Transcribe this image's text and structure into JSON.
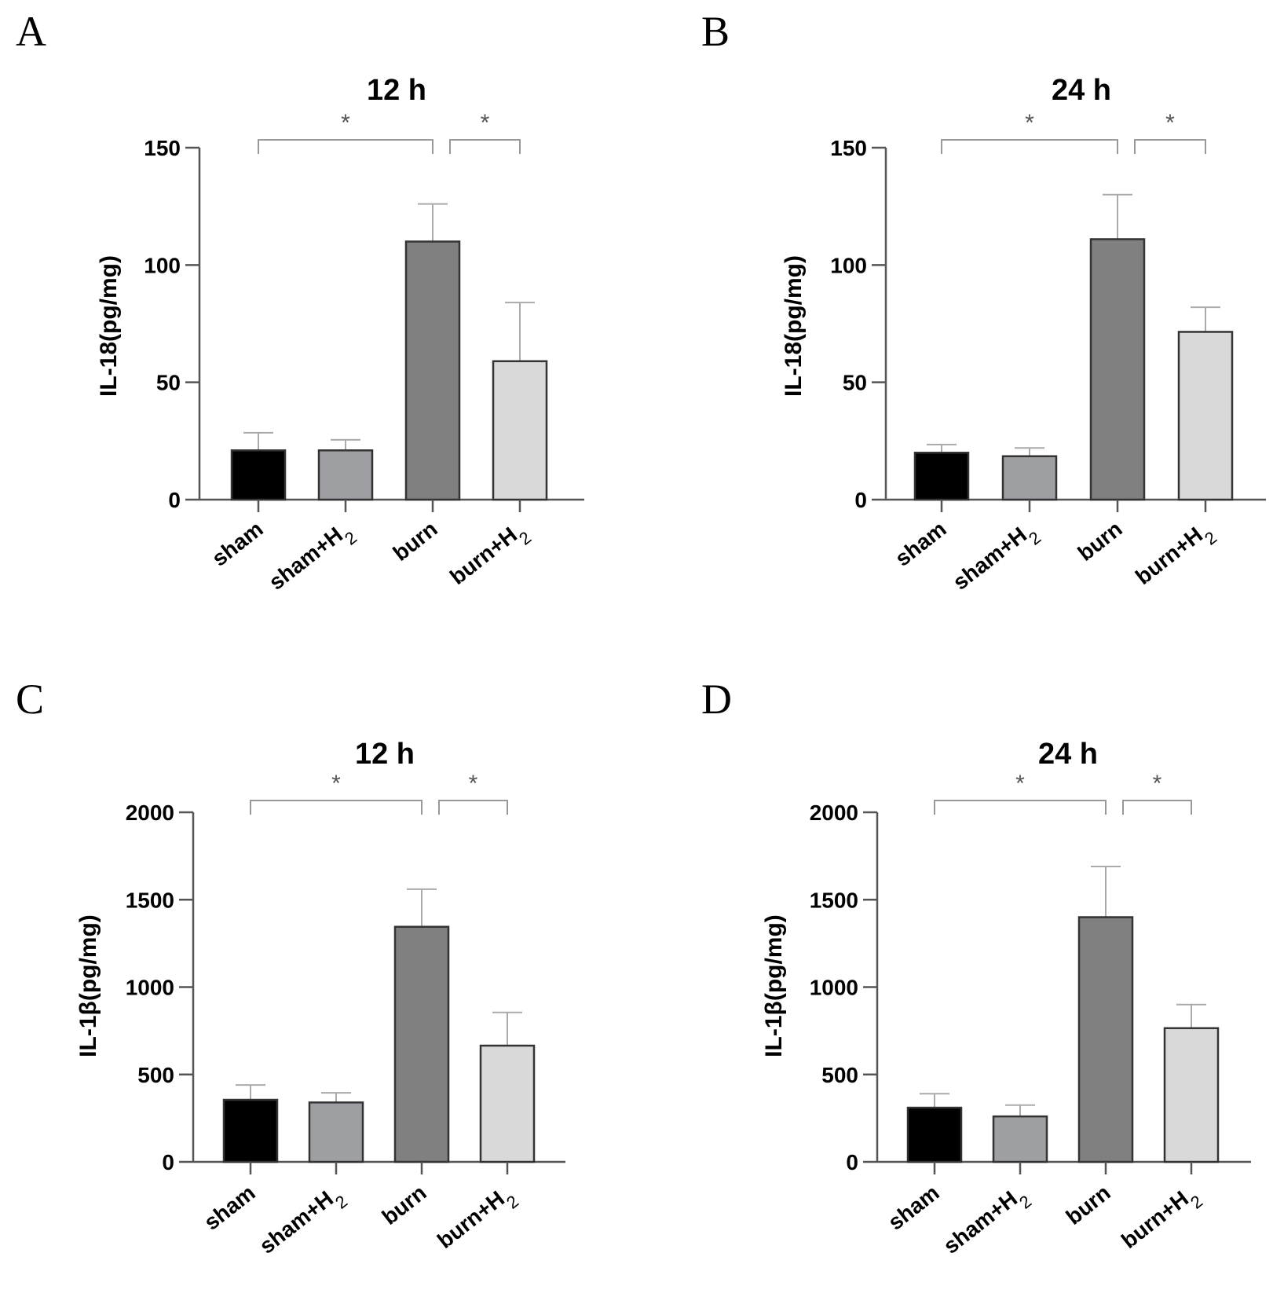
{
  "chart_data": [
    {
      "panel": "A",
      "type": "bar",
      "title": "12 h",
      "ylabel": "IL-18(pg/mg)",
      "ylim": [
        0,
        150
      ],
      "yticks": [
        "0",
        "50",
        "100",
        "150"
      ],
      "categories": [
        "sham",
        "sham+H",
        "burn",
        "burn+H"
      ],
      "category_subscripts": [
        "",
        "2",
        "",
        "2"
      ],
      "values": [
        21,
        21,
        110,
        59
      ],
      "errors": [
        7.5,
        4.5,
        16,
        25
      ],
      "bar_colors": [
        "#000000",
        "#9e9fa3",
        "#808080",
        "#d9d9d9"
      ],
      "significance": [
        {
          "from": 0,
          "to": 2,
          "label": "*"
        },
        {
          "from": 2,
          "to": 3,
          "label": "*"
        }
      ]
    },
    {
      "panel": "B",
      "type": "bar",
      "title": "24 h",
      "ylabel": "IL-18(pg/mg)",
      "ylim": [
        0,
        150
      ],
      "yticks": [
        "0",
        "50",
        "100",
        "150"
      ],
      "categories": [
        "sham",
        "sham+H",
        "burn",
        "burn+H"
      ],
      "category_subscripts": [
        "",
        "2",
        "",
        "2"
      ],
      "values": [
        20,
        18.5,
        111,
        71.5
      ],
      "errors": [
        3.5,
        3.5,
        19,
        10.5
      ],
      "bar_colors": [
        "#000000",
        "#9e9fa3",
        "#808080",
        "#d9d9d9"
      ],
      "significance": [
        {
          "from": 0,
          "to": 2,
          "label": "*"
        },
        {
          "from": 2,
          "to": 3,
          "label": "*"
        }
      ]
    },
    {
      "panel": "C",
      "type": "bar",
      "title": "12 h",
      "ylabel": "IL-1β(pg/mg)",
      "ylim": [
        0,
        2000
      ],
      "yticks": [
        "0",
        "500",
        "1000",
        "1500",
        "2000"
      ],
      "categories": [
        "sham",
        "sham+H",
        "burn",
        "burn+H"
      ],
      "category_subscripts": [
        "",
        "2",
        "",
        "2"
      ],
      "values": [
        355,
        340,
        1345,
        665
      ],
      "errors": [
        85,
        55,
        215,
        190
      ],
      "bar_colors": [
        "#000000",
        "#9e9fa3",
        "#808080",
        "#d9d9d9"
      ],
      "significance": [
        {
          "from": 0,
          "to": 2,
          "label": "*"
        },
        {
          "from": 2,
          "to": 3,
          "label": "*"
        }
      ]
    },
    {
      "panel": "D",
      "type": "bar",
      "title": "24 h",
      "ylabel": "IL-1β(pg/mg)",
      "ylim": [
        0,
        2000
      ],
      "yticks": [
        "0",
        "500",
        "1000",
        "1500",
        "2000"
      ],
      "categories": [
        "sham",
        "sham+H",
        "burn",
        "burn+H"
      ],
      "category_subscripts": [
        "",
        "2",
        "",
        "2"
      ],
      "values": [
        310,
        260,
        1400,
        765
      ],
      "errors": [
        80,
        65,
        290,
        135
      ],
      "bar_colors": [
        "#000000",
        "#9e9fa3",
        "#808080",
        "#d9d9d9"
      ],
      "significance": [
        {
          "from": 0,
          "to": 2,
          "label": "*"
        },
        {
          "from": 2,
          "to": 3,
          "label": "*"
        }
      ]
    }
  ]
}
